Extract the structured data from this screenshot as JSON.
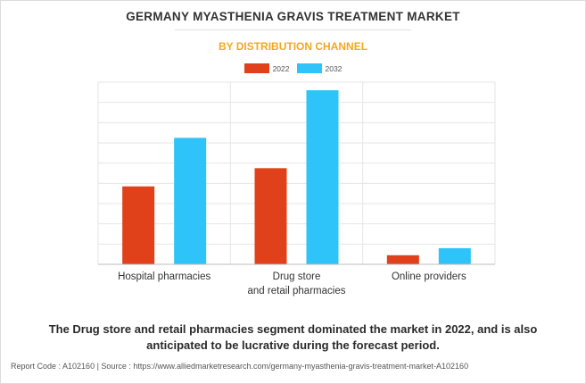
{
  "chart_data": {
    "type": "bar",
    "title": "GERMANY MYASTHENIA GRAVIS TREATMENT MARKET",
    "subtitle": "BY DISTRIBUTION CHANNEL",
    "categories": [
      [
        "Hospital pharmacies"
      ],
      [
        "Drug store",
        "and retail pharmacies"
      ],
      [
        "Online providers"
      ]
    ],
    "series": [
      {
        "name": "2022",
        "color": "#e0401a",
        "values": [
          38.5,
          47.5,
          4.5
        ]
      },
      {
        "name": "2032",
        "color": "#2ec4f9",
        "values": [
          62.5,
          86.0,
          8.0
        ]
      }
    ],
    "ylim": [
      0,
      90
    ],
    "grid": true,
    "legend_position": "top-center",
    "xlabel": "",
    "ylabel": ""
  },
  "caption": "The Drug store and retail pharmacies segment dominated the market in 2022, and is also anticipated to be lucrative during the forecast period.",
  "footer": "Report Code : A102160  |  Source : https://www.alliedmarketresearch.com/germany-myasthenia-gravis-treatment-market-A102160"
}
